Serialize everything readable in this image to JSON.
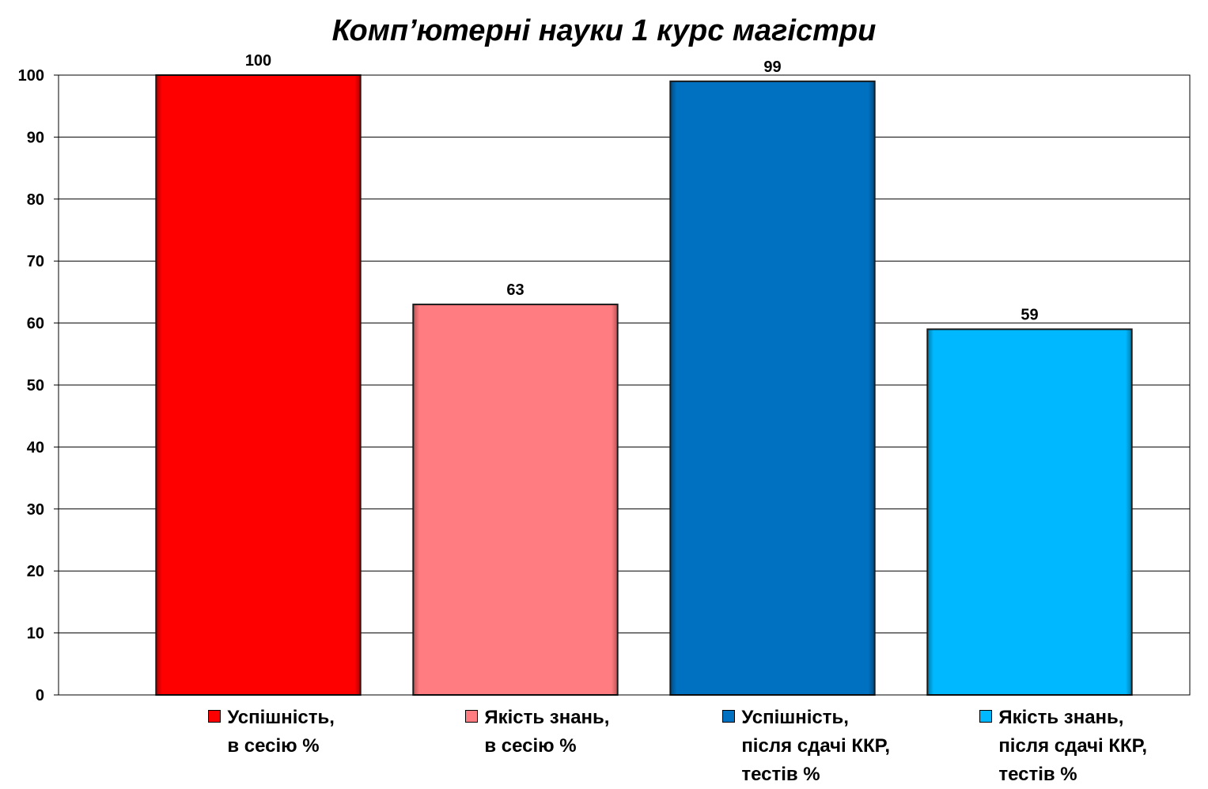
{
  "chart_data": {
    "type": "bar",
    "title": "Комп’ютерні науки 1 курс магістри",
    "ylim": [
      0,
      100
    ],
    "yticks": [
      "0",
      "10",
      "20",
      "30",
      "40",
      "50",
      "60",
      "70",
      "80",
      "90",
      "100"
    ],
    "grid": true,
    "legend_placement": "bottom",
    "series": [
      {
        "name_lines": [
          "Успішність,",
          "в сесію %"
        ],
        "value": 100,
        "label": "100",
        "color": "#ff0000",
        "dark": "#b30000"
      },
      {
        "name_lines": [
          "Якість знань,",
          "в сесію %"
        ],
        "value": 63,
        "label": "63",
        "color": "#ff7c80",
        "dark": "#b85558"
      },
      {
        "name_lines": [
          "Успішність,",
          "після сдачі ККР,",
          "тестів %"
        ],
        "value": 99,
        "label": "99",
        "color": "#0070c0",
        "dark": "#004a80"
      },
      {
        "name_lines": [
          "Якість знань,",
          "після сдачі ККР,",
          "тестів %"
        ],
        "value": 59,
        "label": "59",
        "color": "#00b8ff",
        "dark": "#007aa8"
      }
    ]
  }
}
